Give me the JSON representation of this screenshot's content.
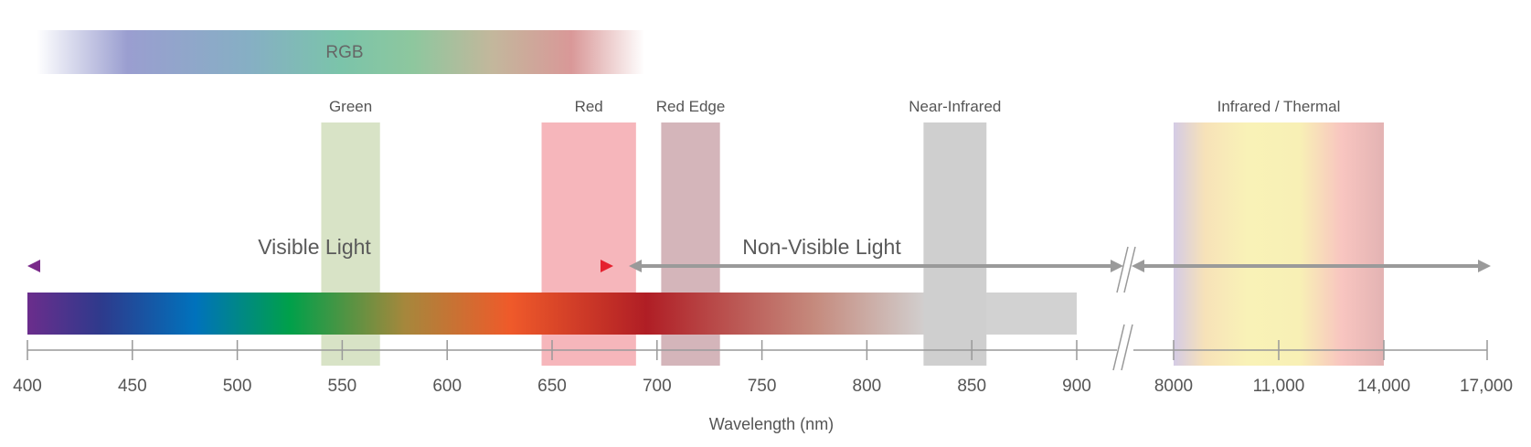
{
  "rgb_label": "RGB",
  "bands": {
    "green": "Green",
    "red": "Red",
    "red_edge": "Red Edge",
    "nir": "Near-Infrared",
    "thermal": "Infrared / Thermal"
  },
  "regions": {
    "visible": "Visible Light",
    "non_visible": "Non-Visible Light"
  },
  "axis": {
    "title": "Wavelength (nm)",
    "ticks_main": [
      400,
      450,
      500,
      550,
      600,
      650,
      700,
      750,
      800,
      850,
      900
    ],
    "tick_labels_main": [
      "400",
      "450",
      "500",
      "550",
      "600",
      "650",
      "700",
      "750",
      "800",
      "850",
      "900"
    ],
    "tick_labels_ir": [
      "8000",
      "11,000",
      "14,000",
      "17,000"
    ]
  },
  "band_ranges_nm": {
    "green": [
      540,
      568
    ],
    "red": [
      645,
      690
    ],
    "red_edge": [
      702,
      730
    ],
    "nir": [
      827,
      857
    ]
  },
  "colors": {
    "green_band": "#d8e3c6",
    "red_band": "#f6b6bb",
    "red_edge_band": "#d4b5ba",
    "nir_band": "#cfcfcf",
    "arrow_gray": "#9a9a9a",
    "axis_line": "#999999"
  }
}
